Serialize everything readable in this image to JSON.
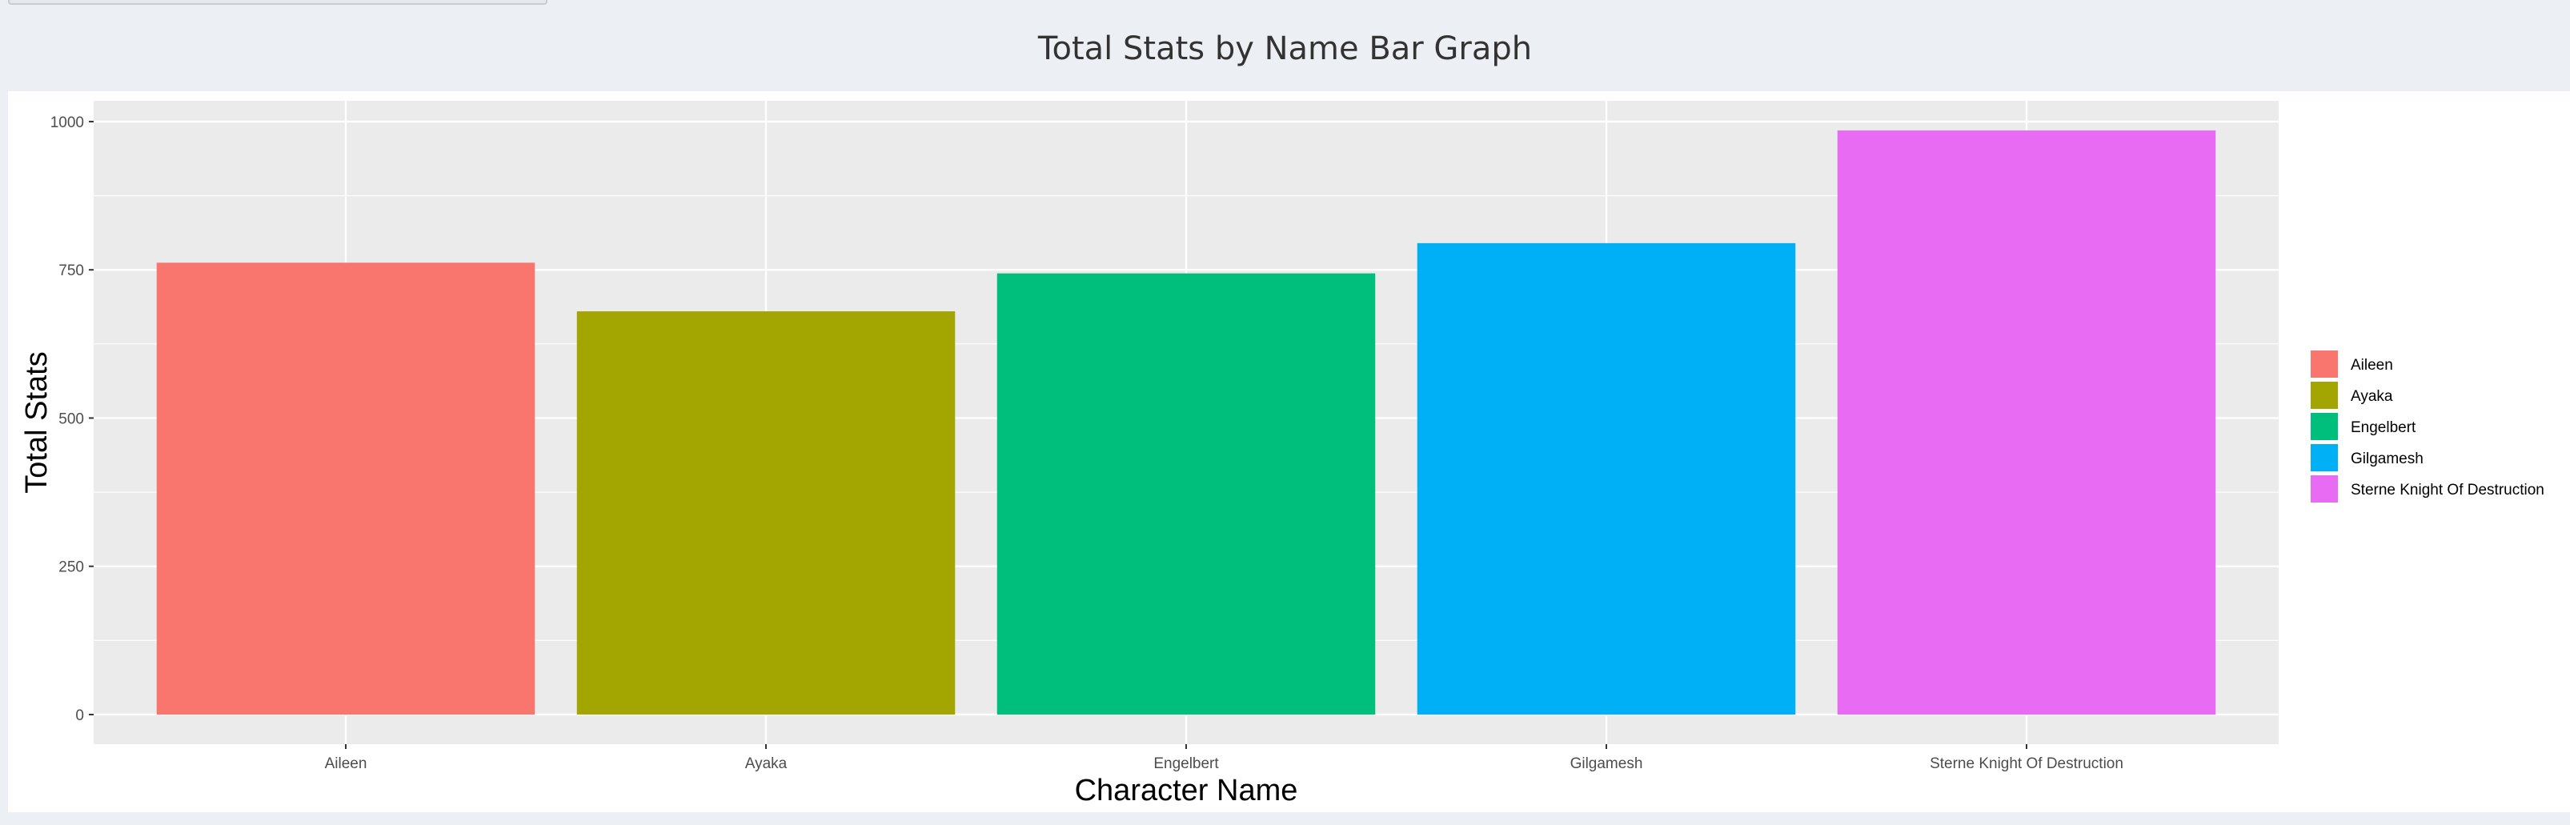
{
  "page": {
    "title": "Total Stats by Name Bar Graph"
  },
  "chart_data": {
    "type": "bar",
    "title": "",
    "xlabel": "Character Name",
    "ylabel": "Total Stats",
    "categories": [
      "Aileen",
      "Ayaka",
      "Engelbert",
      "Gilgamesh",
      "Sterne Knight Of Destruction"
    ],
    "values": [
      762,
      680,
      744,
      795,
      985
    ],
    "colors": [
      "#F8766D",
      "#A3A500",
      "#00BF7D",
      "#00B0F6",
      "#E76BF3"
    ],
    "ylim": [
      -50,
      1035
    ],
    "yticks": [
      0,
      250,
      500,
      750,
      1000
    ],
    "ytick_labels": [
      "0",
      "250",
      "500",
      "750",
      "1000"
    ],
    "grid": true,
    "panel_background": "#EBEBEB",
    "legend": {
      "position": "right",
      "entries": [
        "Aileen",
        "Ayaka",
        "Engelbert",
        "Gilgamesh",
        "Sterne Knight Of Destruction"
      ]
    }
  }
}
